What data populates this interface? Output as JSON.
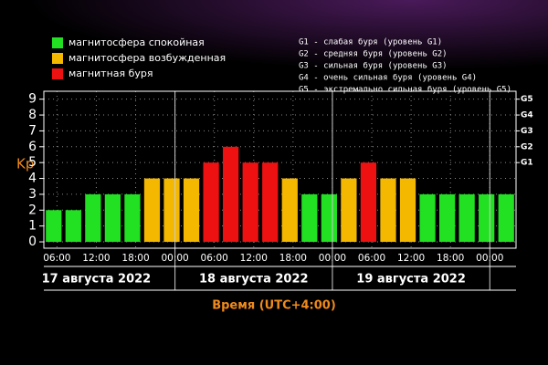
{
  "chart_data": {
    "type": "bar",
    "ylabel": "Kp",
    "xlabel": "Время (UTC+4:00)",
    "legend": [
      {
        "name": "магнитосфера спокойная",
        "color": "#22e022"
      },
      {
        "name": "магнитосфера возбужденная",
        "color": "#f5b800"
      },
      {
        "name": "магнитная буря",
        "color": "#ee1111"
      }
    ],
    "storm_scale": [
      "G1 - слабая буря (уровень G1)",
      "G2 - средняя буря (уровень G2)",
      "G3 - сильная буря (уровень G3)",
      "G4 - очень сильная буря (уровень G4)",
      "G5 - экстремально сильная буря (уровень G5)"
    ],
    "x": [
      5.5,
      8.5,
      11.5,
      14.5,
      17.5,
      20.5,
      23.5,
      26.5,
      29.5,
      32.5,
      35.5,
      38.5,
      41.5,
      44.5,
      47.5,
      50.5,
      53.5,
      56.5,
      59.5,
      62.5,
      65.5,
      68.5,
      71.5,
      74.5
    ],
    "values": [
      2,
      2,
      3,
      3,
      3,
      4,
      4,
      4,
      5,
      6,
      5,
      5,
      4,
      3,
      3,
      4,
      5,
      4,
      4,
      3,
      3,
      3,
      3,
      3
    ],
    "colors": [
      "#22e022",
      "#22e022",
      "#22e022",
      "#22e022",
      "#22e022",
      "#f5b800",
      "#f5b800",
      "#f5b800",
      "#ee1111",
      "#ee1111",
      "#ee1111",
      "#ee1111",
      "#f5b800",
      "#22e022",
      "#22e022",
      "#f5b800",
      "#ee1111",
      "#f5b800",
      "#f5b800",
      "#22e022",
      "#22e022",
      "#22e022",
      "#22e022",
      "#22e022"
    ],
    "bar_width": 2.4,
    "xlim": [
      4,
      76
    ],
    "xticks": [
      {
        "value": 6,
        "label": "06:00"
      },
      {
        "value": 12,
        "label": "12:00"
      },
      {
        "value": 18,
        "label": "18:00"
      },
      {
        "value": 24,
        "label": "00:00"
      },
      {
        "value": 30,
        "label": "06:00"
      },
      {
        "value": 36,
        "label": "12:00"
      },
      {
        "value": 42,
        "label": "18:00"
      },
      {
        "value": 48,
        "label": "00:00"
      },
      {
        "value": 54,
        "label": "06:00"
      },
      {
        "value": 60,
        "label": "12:00"
      },
      {
        "value": 66,
        "label": "18:00"
      },
      {
        "value": 72,
        "label": "00:00"
      }
    ],
    "day_breaks": [
      24,
      48,
      72
    ],
    "days": [
      {
        "label": "17 августа 2022",
        "center": 12
      },
      {
        "label": "18 августа 2022",
        "center": 36
      },
      {
        "label": "19 августа 2022",
        "center": 60
      }
    ],
    "ylim": [
      -0.4,
      9.5
    ],
    "yticks": [
      0,
      1,
      2,
      3,
      4,
      5,
      6,
      7,
      8,
      9
    ],
    "y2lim": [
      -0.4,
      9.5
    ],
    "y2ticks": [
      {
        "value": 5,
        "label": "G1"
      },
      {
        "value": 6,
        "label": "G2"
      },
      {
        "value": 7,
        "label": "G3"
      },
      {
        "value": 8,
        "label": "G4"
      },
      {
        "value": 9,
        "label": "G5"
      }
    ],
    "grid": true
  }
}
